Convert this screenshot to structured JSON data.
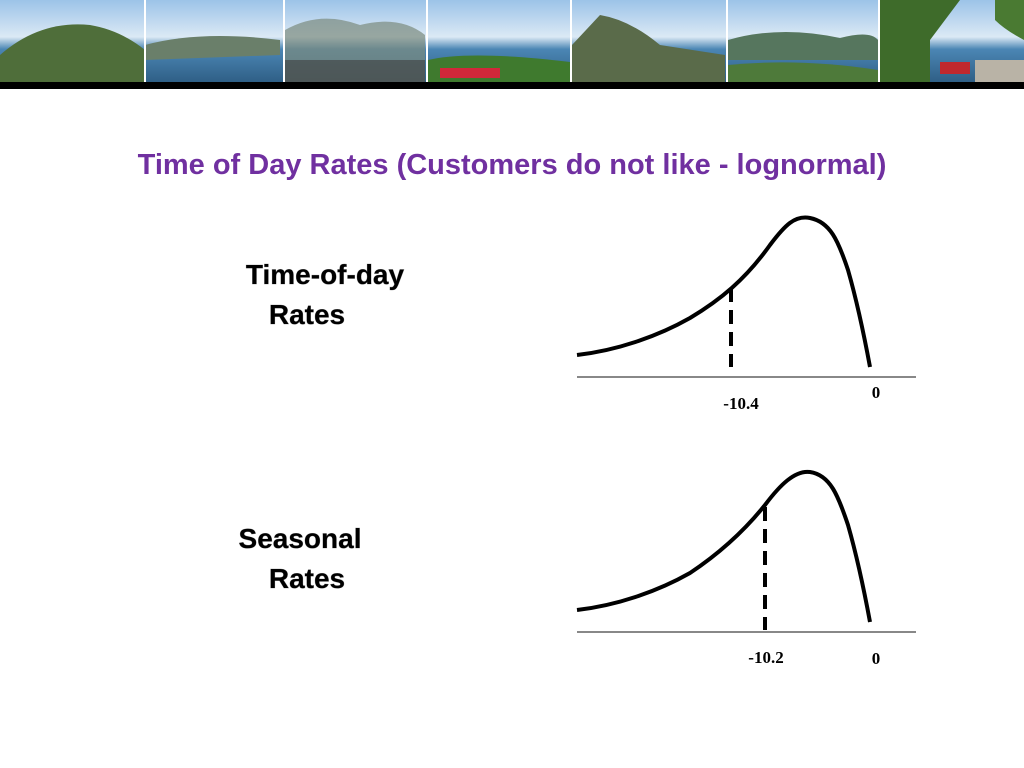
{
  "header": {
    "title": "Time of Day Rates (Customers do not like - lognormal)"
  },
  "panels": [
    {
      "label_lines": [
        "Time-of-day",
        "Rates"
      ],
      "marker_label": "-10.4",
      "zero_label": "0"
    },
    {
      "label_lines": [
        "Seasonal",
        "Rates"
      ],
      "marker_label": "-10.2",
      "zero_label": "0"
    }
  ]
}
